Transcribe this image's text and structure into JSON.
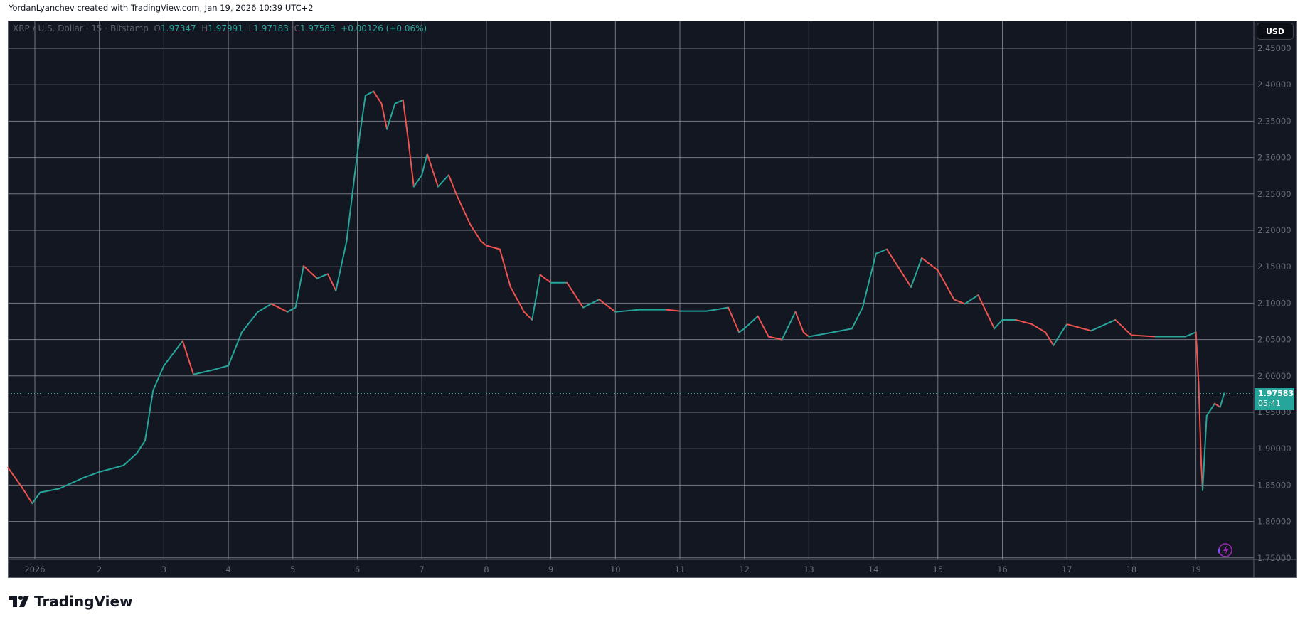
{
  "header": {
    "credit": "YordanLyanchev created with TradingView.com, Jan 19, 2026 10:39 UTC+2"
  },
  "legend": {
    "symbol": "XRP / U.S. Dollar · 15 · Bitstamp",
    "o_label": "O",
    "o": "1.97347",
    "h_label": "H",
    "h": "1.97991",
    "l_label": "L",
    "l": "1.97183",
    "c_label": "C",
    "c": "1.97583",
    "change": "+0.00126 (+0.06%)"
  },
  "currency_button": "USD",
  "price_label": {
    "price": "1.97583",
    "countdown": "05:41"
  },
  "footer": {
    "brand": "TradingView"
  },
  "icons": {
    "logo": "tradingview-logo-icon",
    "lightning": "lightning-icon"
  },
  "colors": {
    "background": "#131722",
    "up": "#26a69a",
    "down": "#ef5350",
    "grid": "#9598a1",
    "accent": "#26a69a",
    "lightning": "#9c27b0"
  },
  "chart_data": {
    "type": "candlestick",
    "interval": "15",
    "ylim": [
      1.75,
      2.45
    ],
    "yticks": [
      "2.45000",
      "2.40000",
      "2.35000",
      "2.30000",
      "2.25000",
      "2.20000",
      "2.15000",
      "2.10000",
      "2.05000",
      "2.00000",
      "1.95000",
      "1.90000",
      "1.85000",
      "1.80000",
      "1.75000"
    ],
    "xticks": [
      {
        "label": "2026",
        "date": "2026-01-01"
      },
      {
        "label": "2",
        "date": "2026-01-02"
      },
      {
        "label": "3",
        "date": "2026-01-03"
      },
      {
        "label": "4",
        "date": "2026-01-04"
      },
      {
        "label": "5",
        "date": "2026-01-05"
      },
      {
        "label": "6",
        "date": "2026-01-06"
      },
      {
        "label": "7",
        "date": "2026-01-07"
      },
      {
        "label": "8",
        "date": "2026-01-08"
      },
      {
        "label": "9",
        "date": "2026-01-09"
      },
      {
        "label": "10",
        "date": "2026-01-10"
      },
      {
        "label": "11",
        "date": "2026-01-11"
      },
      {
        "label": "12",
        "date": "2026-01-12"
      },
      {
        "label": "13",
        "date": "2026-01-13"
      },
      {
        "label": "14",
        "date": "2026-01-14"
      },
      {
        "label": "15",
        "date": "2026-01-15"
      },
      {
        "label": "16",
        "date": "2026-01-16"
      },
      {
        "label": "17",
        "date": "2026-01-17"
      },
      {
        "label": "18",
        "date": "2026-01-18"
      },
      {
        "label": "19",
        "date": "2026-01-19"
      }
    ],
    "grid": true,
    "last_price": 1.97583,
    "series": [
      [
        "2025-12-31T14:00",
        1.874
      ],
      [
        "2025-12-31T19:00",
        1.848
      ],
      [
        "2025-12-31T23:00",
        1.825
      ],
      [
        "2026-01-01T02:00",
        1.84
      ],
      [
        "2026-01-01T09:00",
        1.845
      ],
      [
        "2026-01-01T18:00",
        1.86
      ],
      [
        "2026-01-02T00:00",
        1.868
      ],
      [
        "2026-01-02T09:00",
        1.877
      ],
      [
        "2026-01-02T14:00",
        1.894
      ],
      [
        "2026-01-02T17:00",
        1.911
      ],
      [
        "2026-01-02T20:00",
        1.98
      ],
      [
        "2026-01-03T00:00",
        2.014
      ],
      [
        "2026-01-03T07:00",
        2.048
      ],
      [
        "2026-01-03T11:00",
        2.002
      ],
      [
        "2026-01-03T18:00",
        2.008
      ],
      [
        "2026-01-04T00:00",
        2.014
      ],
      [
        "2026-01-04T05:00",
        2.06
      ],
      [
        "2026-01-04T11:00",
        2.088
      ],
      [
        "2026-01-04T16:00",
        2.099
      ],
      [
        "2026-01-04T22:00",
        2.088
      ],
      [
        "2026-01-05T01:00",
        2.094
      ],
      [
        "2026-01-05T04:00",
        2.151
      ],
      [
        "2026-01-05T09:00",
        2.134
      ],
      [
        "2026-01-05T13:00",
        2.14
      ],
      [
        "2026-01-05T16:00",
        2.117
      ],
      [
        "2026-01-05T20:00",
        2.185
      ],
      [
        "2026-01-05T23:00",
        2.276
      ],
      [
        "2026-01-06T01:00",
        2.334
      ],
      [
        "2026-01-06T03:00",
        2.385
      ],
      [
        "2026-01-06T06:00",
        2.391
      ],
      [
        "2026-01-06T09:00",
        2.374
      ],
      [
        "2026-01-06T11:00",
        2.339
      ],
      [
        "2026-01-06T14:00",
        2.374
      ],
      [
        "2026-01-06T17:00",
        2.379
      ],
      [
        "2026-01-06T19:00",
        2.322
      ],
      [
        "2026-01-06T21:00",
        2.26
      ],
      [
        "2026-01-07T00:00",
        2.276
      ],
      [
        "2026-01-07T02:00",
        2.305
      ],
      [
        "2026-01-07T06:00",
        2.26
      ],
      [
        "2026-01-07T10:00",
        2.276
      ],
      [
        "2026-01-07T13:00",
        2.248
      ],
      [
        "2026-01-07T18:00",
        2.208
      ],
      [
        "2026-01-07T22:00",
        2.185
      ],
      [
        "2026-01-08T00:00",
        2.179
      ],
      [
        "2026-01-08T05:00",
        2.174
      ],
      [
        "2026-01-08T09:00",
        2.122
      ],
      [
        "2026-01-08T14:00",
        2.088
      ],
      [
        "2026-01-08T17:00",
        2.077
      ],
      [
        "2026-01-08T20:00",
        2.139
      ],
      [
        "2026-01-09T00:00",
        2.128
      ],
      [
        "2026-01-09T06:00",
        2.128
      ],
      [
        "2026-01-09T12:00",
        2.094
      ],
      [
        "2026-01-09T18:00",
        2.105
      ],
      [
        "2026-01-10T00:00",
        2.088
      ],
      [
        "2026-01-10T09:00",
        2.091
      ],
      [
        "2026-01-10T19:00",
        2.091
      ],
      [
        "2026-01-11T00:00",
        2.089
      ],
      [
        "2026-01-11T10:00",
        2.089
      ],
      [
        "2026-01-11T18:00",
        2.094
      ],
      [
        "2026-01-11T22:00",
        2.06
      ],
      [
        "2026-01-12T00:00",
        2.065
      ],
      [
        "2026-01-12T05:00",
        2.082
      ],
      [
        "2026-01-12T09:00",
        2.054
      ],
      [
        "2026-01-12T14:00",
        2.05
      ],
      [
        "2026-01-12T19:00",
        2.088
      ],
      [
        "2026-01-12T22:00",
        2.06
      ],
      [
        "2026-01-13T00:00",
        2.054
      ],
      [
        "2026-01-13T09:00",
        2.06
      ],
      [
        "2026-01-13T16:00",
        2.065
      ],
      [
        "2026-01-13T20:00",
        2.094
      ],
      [
        "2026-01-13T23:00",
        2.139
      ],
      [
        "2026-01-14T01:00",
        2.168
      ],
      [
        "2026-01-14T05:00",
        2.174
      ],
      [
        "2026-01-14T09:00",
        2.151
      ],
      [
        "2026-01-14T14:00",
        2.122
      ],
      [
        "2026-01-14T18:00",
        2.162
      ],
      [
        "2026-01-15T00:00",
        2.145
      ],
      [
        "2026-01-15T06:00",
        2.105
      ],
      [
        "2026-01-15T10:00",
        2.099
      ],
      [
        "2026-01-15T15:00",
        2.111
      ],
      [
        "2026-01-15T18:00",
        2.088
      ],
      [
        "2026-01-15T21:00",
        2.065
      ],
      [
        "2026-01-16T00:00",
        2.077
      ],
      [
        "2026-01-16T05:00",
        2.077
      ],
      [
        "2026-01-16T11:00",
        2.071
      ],
      [
        "2026-01-16T16:00",
        2.06
      ],
      [
        "2026-01-16T19:00",
        2.042
      ],
      [
        "2026-01-16T22:00",
        2.06
      ],
      [
        "2026-01-17T00:00",
        2.071
      ],
      [
        "2026-01-17T09:00",
        2.062
      ],
      [
        "2026-01-17T18:00",
        2.077
      ],
      [
        "2026-01-18T00:00",
        2.056
      ],
      [
        "2026-01-18T09:00",
        2.054
      ],
      [
        "2026-01-18T20:00",
        2.054
      ],
      [
        "2026-01-19T00:00",
        2.06
      ],
      [
        "2026-01-19T01:00",
        1.991
      ],
      [
        "2026-01-19T02:00",
        1.877
      ],
      [
        "2026-01-19T02:30",
        1.843
      ],
      [
        "2026-01-19T04:00",
        1.945
      ],
      [
        "2026-01-19T07:00",
        1.962
      ],
      [
        "2026-01-19T09:00",
        1.957
      ],
      [
        "2026-01-19T10:30",
        1.97583
      ]
    ]
  }
}
